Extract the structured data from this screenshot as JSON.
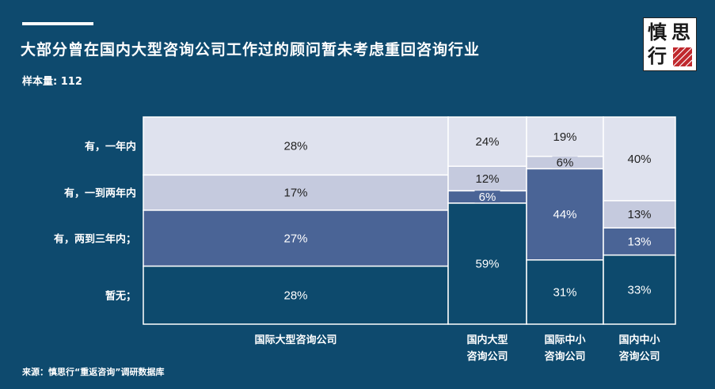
{
  "title": "大部分曾在国内大型咨询公司工作过的顾问暂未考虑重回咨询行业",
  "sample_label": "样本量: 112",
  "source": "来源：慎思行“重返咨询”调研数据库",
  "logo": {
    "chars": [
      "慎",
      "思",
      "行"
    ]
  },
  "colors": {
    "background": "#0e4a6e",
    "seg_within_1yr": "#dfe2ee",
    "seg_1_to_2yr": "#c5cade",
    "seg_2_to_3yr": "#4a6496",
    "seg_no": "#0d4a6d"
  },
  "chart_data": {
    "type": "marimekko",
    "title": "大部分曾在国内大型咨询公司工作过的顾问暂未考虑重回咨询行业",
    "segments": [
      "有，一年内",
      "有，一到两年内",
      "有，两到三年内；",
      "暂无；"
    ],
    "categories": [
      {
        "label": [
          "国际大型咨询公司"
        ],
        "values": [
          28,
          17,
          27,
          28
        ]
      },
      {
        "label": [
          "国内大型",
          "咨询公司"
        ],
        "values": [
          24,
          12,
          6,
          59
        ]
      },
      {
        "label": [
          "国际中小",
          "咨询公司"
        ],
        "values": [
          19,
          6,
          44,
          31
        ]
      },
      {
        "label": [
          "国内中小",
          "咨询公司"
        ],
        "values": [
          40,
          13,
          13,
          33
        ]
      }
    ],
    "unit": "%"
  }
}
